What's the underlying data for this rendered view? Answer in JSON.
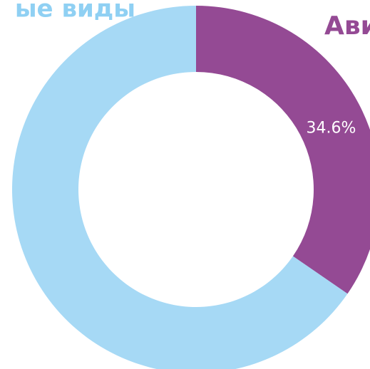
{
  "chart_data": {
    "type": "donut",
    "categories": [
      "Ави",
      "ые виды"
    ],
    "values": [
      34.6,
      65.4
    ],
    "value_labels": [
      "34.6%",
      null
    ],
    "colors": [
      "#944a94",
      "#a6d9f5"
    ],
    "label_colors": [
      "#944a94",
      "#8fd0f3"
    ]
  }
}
